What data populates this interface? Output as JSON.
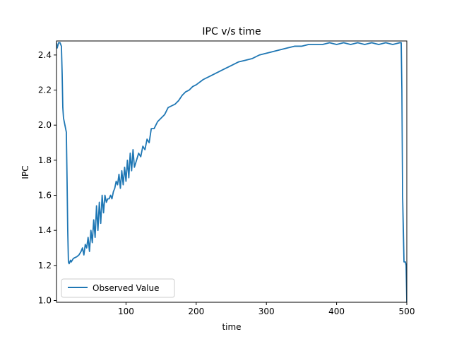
{
  "chart_data": {
    "type": "line",
    "title": "IPC v/s time",
    "xlabel": "time",
    "ylabel": "IPC",
    "xlim": [
      1,
      500
    ],
    "ylim": [
      0.99,
      2.48
    ],
    "x_ticks": [
      100,
      200,
      300,
      400,
      500
    ],
    "y_ticks": [
      1.0,
      1.2,
      1.4,
      1.6,
      1.8,
      2.0,
      2.2,
      2.4
    ],
    "x_tick_labels": [
      "100",
      "200",
      "300",
      "400",
      "500"
    ],
    "y_tick_labels": [
      "1.0",
      "1.2",
      "1.4",
      "1.6",
      "1.8",
      "2.0",
      "2.2",
      "2.4"
    ],
    "grid": false,
    "legend_position": "lower-left",
    "line_color": "#1f77b4",
    "series": [
      {
        "name": "Observed Value",
        "x": [
          1,
          2,
          4,
          6,
          8,
          9,
          10,
          11,
          12,
          13,
          14,
          15,
          16,
          17,
          18,
          19,
          20,
          21,
          22,
          25,
          30,
          33,
          36,
          38,
          40,
          42,
          44,
          46,
          48,
          50,
          52,
          54,
          56,
          58,
          60,
          62,
          64,
          66,
          68,
          70,
          72,
          74,
          76,
          78,
          80,
          82,
          84,
          86,
          88,
          90,
          92,
          94,
          96,
          98,
          100,
          102,
          104,
          106,
          108,
          110,
          112,
          115,
          118,
          121,
          124,
          127,
          130,
          133,
          136,
          140,
          145,
          150,
          155,
          160,
          165,
          170,
          175,
          180,
          185,
          190,
          195,
          200,
          210,
          220,
          230,
          240,
          250,
          260,
          270,
          280,
          290,
          300,
          310,
          320,
          330,
          340,
          350,
          360,
          370,
          380,
          390,
          400,
          410,
          420,
          430,
          440,
          450,
          460,
          470,
          480,
          490,
          492,
          493,
          494,
          496,
          498,
          499,
          500
        ],
        "y": [
          2.47,
          2.44,
          2.47,
          2.47,
          2.45,
          2.3,
          2.1,
          2.04,
          2.02,
          2.0,
          1.98,
          1.96,
          1.7,
          1.4,
          1.22,
          1.21,
          1.22,
          1.23,
          1.22,
          1.24,
          1.25,
          1.26,
          1.28,
          1.3,
          1.26,
          1.32,
          1.3,
          1.36,
          1.28,
          1.4,
          1.33,
          1.46,
          1.36,
          1.54,
          1.4,
          1.56,
          1.44,
          1.6,
          1.5,
          1.6,
          1.56,
          1.58,
          1.58,
          1.6,
          1.58,
          1.62,
          1.64,
          1.68,
          1.66,
          1.72,
          1.64,
          1.74,
          1.66,
          1.76,
          1.68,
          1.8,
          1.7,
          1.84,
          1.74,
          1.86,
          1.76,
          1.8,
          1.84,
          1.82,
          1.88,
          1.86,
          1.92,
          1.9,
          1.98,
          1.98,
          2.02,
          2.04,
          2.06,
          2.1,
          2.11,
          2.12,
          2.14,
          2.17,
          2.19,
          2.2,
          2.22,
          2.23,
          2.26,
          2.28,
          2.3,
          2.32,
          2.34,
          2.36,
          2.37,
          2.38,
          2.4,
          2.41,
          2.42,
          2.43,
          2.44,
          2.45,
          2.45,
          2.46,
          2.46,
          2.46,
          2.47,
          2.46,
          2.47,
          2.46,
          2.47,
          2.46,
          2.47,
          2.46,
          2.47,
          2.46,
          2.47,
          2.47,
          2.2,
          1.6,
          1.22,
          1.22,
          1.2,
          0.99
        ]
      }
    ]
  }
}
